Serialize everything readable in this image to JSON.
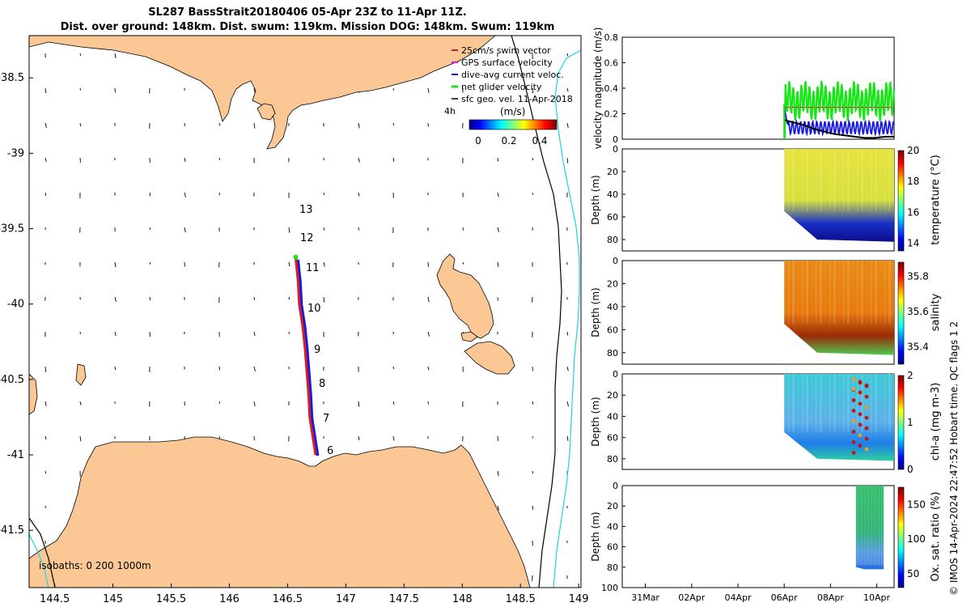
{
  "title_line1": "SL287 BassStrait20180406 05-Apr 23Z to 11-Apr 11Z.",
  "title_line2": "Dist. over ground: 148km. Dist. swum: 119km. Mission DOG: 148km. Swum: 119km",
  "credit": "© IMOS 14-Apr-2024 22:47:52 Hobart time. QC flags 1  2",
  "colors": {
    "land": "#fbc895",
    "track": "#d81e1e",
    "dive_avg": "#1a1adf",
    "net_glider": "#18e418",
    "gps": "#e018e0",
    "isobath_200": "#000000",
    "isobath_1000": "#19d4e6"
  },
  "map": {
    "legend": [
      {
        "label": "25cm/s swim vector",
        "color": "#d81e1e"
      },
      {
        "label": "GPS surface velocity",
        "color": "#e018e0"
      },
      {
        "label": "dive-avg current veloc.",
        "color": "#1a1adf"
      },
      {
        "label": "net glider velocity",
        "color": "#18e418"
      },
      {
        "label": "sfc geo. vel. 11-Apr-2018",
        "color": "#000000"
      }
    ],
    "colorbar_unit": "(m/s)",
    "colorbar_title": "4h",
    "colorbar_ticks": [
      "0",
      "0.2",
      "0.4"
    ],
    "isobath_note": "isobaths: 0   200  1000m",
    "day_labels": [
      "13",
      "12",
      "11",
      "10",
      "9",
      "8",
      "7",
      "6"
    ]
  },
  "chart_data": [
    {
      "type": "line",
      "name": "track-map",
      "x_ticks": [
        "144.5",
        "145",
        "145.5",
        "146",
        "146.5",
        "147",
        "147.5",
        "148",
        "148.5",
        "149"
      ],
      "y_ticks": [
        "-38.5",
        "-39",
        "-39.5",
        "-40",
        "-40.5",
        "-41",
        "-41.5"
      ],
      "xlim": [
        144.28,
        149.02
      ],
      "ylim": [
        -41.88,
        -38.22
      ],
      "track": [
        {
          "lon": 146.74,
          "lat": -41.0
        },
        {
          "lon": 146.72,
          "lat": -40.9
        },
        {
          "lon": 146.69,
          "lat": -40.75
        },
        {
          "lon": 146.68,
          "lat": -40.6
        },
        {
          "lon": 146.67,
          "lat": -40.5
        },
        {
          "lon": 146.65,
          "lat": -40.3
        },
        {
          "lon": 146.63,
          "lat": -40.15
        },
        {
          "lon": 146.6,
          "lat": -40.0
        },
        {
          "lon": 146.59,
          "lat": -39.85
        },
        {
          "lon": 146.57,
          "lat": -39.7
        }
      ]
    },
    {
      "type": "line",
      "name": "velocity-magnitude",
      "ylabel": "velocity magnitude (m/s)",
      "y_ticks": [
        "0",
        "0.2",
        "0.4",
        "0.6",
        "0.8"
      ],
      "ylim": [
        0,
        0.8
      ],
      "x_ticks": [
        "31Mar",
        "02Apr",
        "04Apr",
        "06Apr",
        "08Apr",
        "10Apr"
      ],
      "series": [
        {
          "name": "net glider velocity",
          "color": "#18e418",
          "x": [
            6.0,
            6.5,
            7.0,
            7.5,
            8.0,
            8.5,
            9.0,
            9.5,
            10.0,
            10.5,
            11.0,
            11.45
          ],
          "y": [
            0.0,
            0.32,
            0.25,
            0.38,
            0.3,
            0.42,
            0.28,
            0.44,
            0.3,
            0.45,
            0.35,
            0.3
          ]
        },
        {
          "name": "dive-avg current veloc.",
          "color": "#1a1adf",
          "x": [
            6.0,
            6.5,
            7.0,
            7.5,
            8.0,
            8.5,
            9.0,
            9.5,
            10.0,
            10.5,
            11.0,
            11.45
          ],
          "y": [
            0.25,
            0.12,
            0.1,
            0.08,
            0.12,
            0.06,
            0.1,
            0.05,
            0.12,
            0.06,
            0.12,
            0.08
          ]
        },
        {
          "name": "sfc geo. vel.",
          "color": "#000000",
          "x": [
            6.0,
            6.5,
            7.0,
            7.5,
            8.0,
            8.5,
            9.0,
            9.5,
            10.0,
            10.5,
            11.0,
            11.45
          ],
          "y": [
            0.15,
            0.13,
            0.11,
            0.08,
            0.06,
            0.04,
            0.03,
            0.02,
            0.01,
            0.01,
            0.02,
            0.02
          ]
        },
        {
          "name": "25cm/s swim vector",
          "color": "#d81e1e",
          "x": [
            6.0,
            11.45
          ],
          "y": [
            0.25,
            0.25
          ]
        }
      ]
    },
    {
      "type": "heatmap",
      "name": "temperature-section",
      "ylabel": "Depth (m)",
      "cbar_label": "temperature (°C)",
      "y_ticks": [
        "0",
        "20",
        "40",
        "60",
        "80"
      ],
      "cbar_ticks": [
        "14",
        "16",
        "18",
        "20"
      ],
      "clim": [
        13.5,
        20
      ],
      "surface_value": 18.2,
      "bottom_value": 14.0
    },
    {
      "type": "heatmap",
      "name": "salinity-section",
      "ylabel": "Depth (m)",
      "cbar_label": "salinity",
      "y_ticks": [
        "0",
        "20",
        "40",
        "60",
        "80"
      ],
      "cbar_ticks": [
        "35.4",
        "35.6",
        "35.8"
      ],
      "clim": [
        35.3,
        35.88
      ],
      "surface_value": 35.75,
      "bottom_value": 35.5
    },
    {
      "type": "heatmap",
      "name": "chla-section",
      "ylabel": "Depth (m)",
      "cbar_label": "chl-a (mg m-3)",
      "y_ticks": [
        "0",
        "20",
        "40",
        "60",
        "80"
      ],
      "cbar_ticks": [
        "0",
        "1",
        "2"
      ],
      "clim": [
        0,
        2
      ],
      "surface_value": 0.6,
      "bottom_value": 0.6
    },
    {
      "type": "heatmap",
      "name": "oxygen-section",
      "ylabel": "Depth (m)",
      "cbar_label": "Ox. sat. ratio (%)",
      "y_ticks": [
        "0",
        "20",
        "40",
        "60",
        "80",
        "100"
      ],
      "cbar_ticks": [
        "50",
        "100",
        "150"
      ],
      "clim": [
        30,
        175
      ],
      "surface_value": 95,
      "bottom_value": 80,
      "x_ticks": [
        "31Mar",
        "02Apr",
        "04Apr",
        "06Apr",
        "08Apr",
        "10Apr"
      ]
    }
  ]
}
